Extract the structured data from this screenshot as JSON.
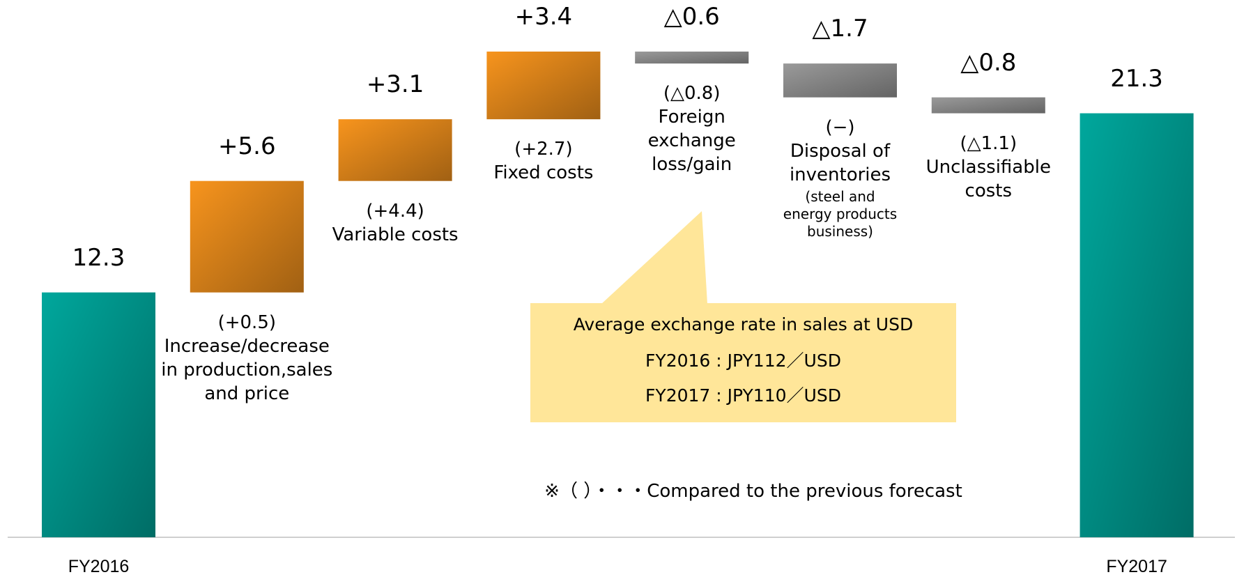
{
  "chart_data": {
    "type": "waterfall",
    "categories": [
      "FY2016",
      "Increase/decrease\nin production,sales\nand price",
      "Variable costs",
      "Fixed costs",
      "Foreign\nexchange\nloss/gain",
      "Disposal of\ninventories",
      "Unclassifiable\ncosts",
      "FY2017"
    ],
    "category_notes": [
      null,
      null,
      null,
      null,
      null,
      "(steel and\nenergy products\nbusiness)",
      null,
      null
    ],
    "measure": [
      "total",
      "relative",
      "relative",
      "relative",
      "relative",
      "relative",
      "relative",
      "total"
    ],
    "values": [
      12.3,
      5.6,
      3.1,
      3.4,
      -0.6,
      -1.7,
      -0.8,
      21.3
    ],
    "value_labels": [
      "12.3",
      "+5.6",
      "+3.1",
      "+3.4",
      "△0.6",
      "△1.7",
      "△0.8",
      "21.3"
    ],
    "comparison_labels": [
      null,
      "(+0.5)",
      "(+4.4)",
      "(+2.7)",
      "(△0.8)",
      "(−)",
      "(△1.1)",
      null
    ],
    "colors": {
      "total": "#00a79c",
      "increase": "#f7941d",
      "decrease": "#9a9a9a"
    },
    "annotation": [
      "Average exchange rate in sales at USD",
      "FY2016 : JPY112／USD",
      "FY2017 : JPY110／USD"
    ],
    "footnote": "※（ ）・・・Compared to the previous forecast"
  }
}
